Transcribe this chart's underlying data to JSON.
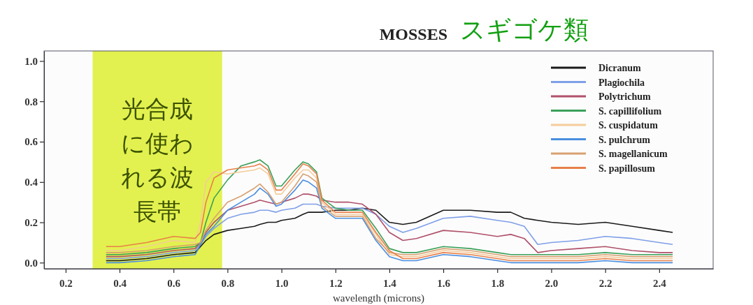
{
  "chart_data": {
    "type": "line",
    "title": "MOSSES",
    "subtitle": "スギゴケ類",
    "xlabel": "wavelength (microns)",
    "x": [
      0.35,
      0.4,
      0.5,
      0.6,
      0.68,
      0.7,
      0.72,
      0.75,
      0.8,
      0.85,
      0.9,
      0.92,
      0.95,
      0.98,
      1.0,
      1.05,
      1.08,
      1.1,
      1.13,
      1.15,
      1.2,
      1.25,
      1.3,
      1.35,
      1.4,
      1.45,
      1.5,
      1.6,
      1.7,
      1.8,
      1.85,
      1.9,
      1.95,
      2.0,
      2.1,
      2.2,
      2.3,
      2.4,
      2.45
    ],
    "series": [
      {
        "name": "Dicranum",
        "color": "#1a1a1a",
        "values": [
          0.01,
          0.01,
          0.02,
          0.04,
          0.05,
          0.08,
          0.11,
          0.14,
          0.16,
          0.17,
          0.18,
          0.19,
          0.2,
          0.2,
          0.21,
          0.22,
          0.24,
          0.25,
          0.25,
          0.25,
          0.26,
          0.26,
          0.27,
          0.26,
          0.2,
          0.19,
          0.2,
          0.26,
          0.26,
          0.25,
          0.25,
          0.22,
          0.21,
          0.2,
          0.19,
          0.2,
          0.18,
          0.16,
          0.15
        ]
      },
      {
        "name": "Plagiochila",
        "color": "#7f9fe8",
        "values": [
          0.02,
          0.02,
          0.03,
          0.05,
          0.06,
          0.09,
          0.13,
          0.17,
          0.22,
          0.24,
          0.25,
          0.26,
          0.26,
          0.25,
          0.26,
          0.27,
          0.29,
          0.29,
          0.29,
          0.28,
          0.27,
          0.27,
          0.27,
          0.24,
          0.18,
          0.15,
          0.17,
          0.22,
          0.23,
          0.21,
          0.2,
          0.18,
          0.09,
          0.1,
          0.11,
          0.13,
          0.12,
          0.1,
          0.09
        ]
      },
      {
        "name": "Polytrichum",
        "color": "#b0506a",
        "values": [
          0.03,
          0.03,
          0.04,
          0.06,
          0.07,
          0.1,
          0.15,
          0.2,
          0.26,
          0.28,
          0.3,
          0.31,
          0.3,
          0.29,
          0.3,
          0.32,
          0.34,
          0.34,
          0.33,
          0.31,
          0.3,
          0.3,
          0.29,
          0.24,
          0.15,
          0.11,
          0.12,
          0.16,
          0.15,
          0.13,
          0.14,
          0.12,
          0.05,
          0.06,
          0.07,
          0.08,
          0.06,
          0.05,
          0.05
        ]
      },
      {
        "name": "S. capillifolium",
        "color": "#3aa05a",
        "values": [
          0.04,
          0.04,
          0.05,
          0.07,
          0.08,
          0.1,
          0.2,
          0.32,
          0.41,
          0.48,
          0.5,
          0.51,
          0.48,
          0.38,
          0.38,
          0.46,
          0.5,
          0.49,
          0.45,
          0.32,
          0.27,
          0.26,
          0.26,
          0.17,
          0.07,
          0.05,
          0.05,
          0.08,
          0.07,
          0.05,
          0.04,
          0.04,
          0.04,
          0.04,
          0.04,
          0.05,
          0.04,
          0.04,
          0.04
        ]
      },
      {
        "name": "S. cuspidatum",
        "color": "#f5cc9a",
        "values": [
          0.06,
          0.06,
          0.08,
          0.11,
          0.1,
          0.2,
          0.4,
          0.45,
          0.44,
          0.45,
          0.46,
          0.47,
          0.44,
          0.34,
          0.34,
          0.42,
          0.46,
          0.46,
          0.42,
          0.3,
          0.24,
          0.24,
          0.24,
          0.14,
          0.04,
          0.03,
          0.03,
          0.06,
          0.05,
          0.03,
          0.02,
          0.02,
          0.02,
          0.02,
          0.02,
          0.03,
          0.02,
          0.02,
          0.02
        ]
      },
      {
        "name": "S. pulchrum",
        "color": "#4a8ee0",
        "values": [
          0,
          0,
          0.01,
          0.03,
          0.04,
          0.09,
          0.14,
          0.18,
          0.26,
          0.3,
          0.34,
          0.37,
          0.34,
          0.28,
          0.29,
          0.36,
          0.41,
          0.4,
          0.37,
          0.27,
          0.22,
          0.22,
          0.22,
          0.11,
          0.03,
          0.01,
          0.01,
          0.04,
          0.03,
          0.01,
          0,
          0,
          0,
          0,
          0,
          0.01,
          0,
          0,
          0
        ]
      },
      {
        "name": "S. magellanicum",
        "color": "#d8a070",
        "values": [
          0.05,
          0.05,
          0.06,
          0.08,
          0.09,
          0.1,
          0.16,
          0.22,
          0.3,
          0.33,
          0.37,
          0.39,
          0.35,
          0.29,
          0.3,
          0.38,
          0.44,
          0.43,
          0.4,
          0.28,
          0.23,
          0.23,
          0.23,
          0.12,
          0.05,
          0.04,
          0.04,
          0.07,
          0.06,
          0.04,
          0.03,
          0.03,
          0.03,
          0.03,
          0.03,
          0.04,
          0.03,
          0.03,
          0.03
        ]
      },
      {
        "name": "S. papillosum",
        "color": "#e8804a",
        "values": [
          0.08,
          0.08,
          0.1,
          0.13,
          0.12,
          0.15,
          0.3,
          0.42,
          0.46,
          0.47,
          0.48,
          0.49,
          0.46,
          0.36,
          0.36,
          0.44,
          0.49,
          0.48,
          0.44,
          0.31,
          0.25,
          0.25,
          0.25,
          0.15,
          0.06,
          0.02,
          0.02,
          0.05,
          0.04,
          0.02,
          0.01,
          0.01,
          0.01,
          0.01,
          0.01,
          0.02,
          0.01,
          0.01,
          0.01
        ]
      }
    ],
    "bands": [
      {
        "axis": "x",
        "from": 0.3,
        "to": 0.78,
        "label": "光合成に使われる波長帯",
        "color": "#dff03c"
      }
    ],
    "xlim": [
      0.12,
      2.6
    ],
    "xticks": [
      {
        "value": 0.2,
        "label": "0.2"
      },
      {
        "value": 0.4,
        "label": "0.4"
      },
      {
        "value": 0.6,
        "label": "0.6"
      },
      {
        "value": 0.8,
        "label": "0.8"
      },
      {
        "value": 1.0,
        "label": "1.0"
      },
      {
        "value": 1.2,
        "label": "1.2"
      },
      {
        "value": 1.4,
        "label": "1.4"
      },
      {
        "value": 1.6,
        "label": "1.6"
      },
      {
        "value": 1.8,
        "label": "1.8"
      },
      {
        "value": 2.0,
        "label": "2.0"
      },
      {
        "value": 2.2,
        "label": "2.2"
      },
      {
        "value": 2.4,
        "label": "2.4"
      }
    ],
    "ylim": [
      -0.03,
      1.05
    ],
    "yticks": [
      {
        "value": 0,
        "label": "0.0"
      },
      {
        "value": 0.2,
        "label": "0.2"
      },
      {
        "value": 0.4,
        "label": "0.4"
      },
      {
        "value": 0.6,
        "label": "0.6"
      },
      {
        "value": 0.8,
        "label": "0.8"
      },
      {
        "value": 1.0,
        "label": "1.0"
      }
    ],
    "legend": "top right",
    "grid": false,
    "marker": "none",
    "line_style": "solid"
  }
}
